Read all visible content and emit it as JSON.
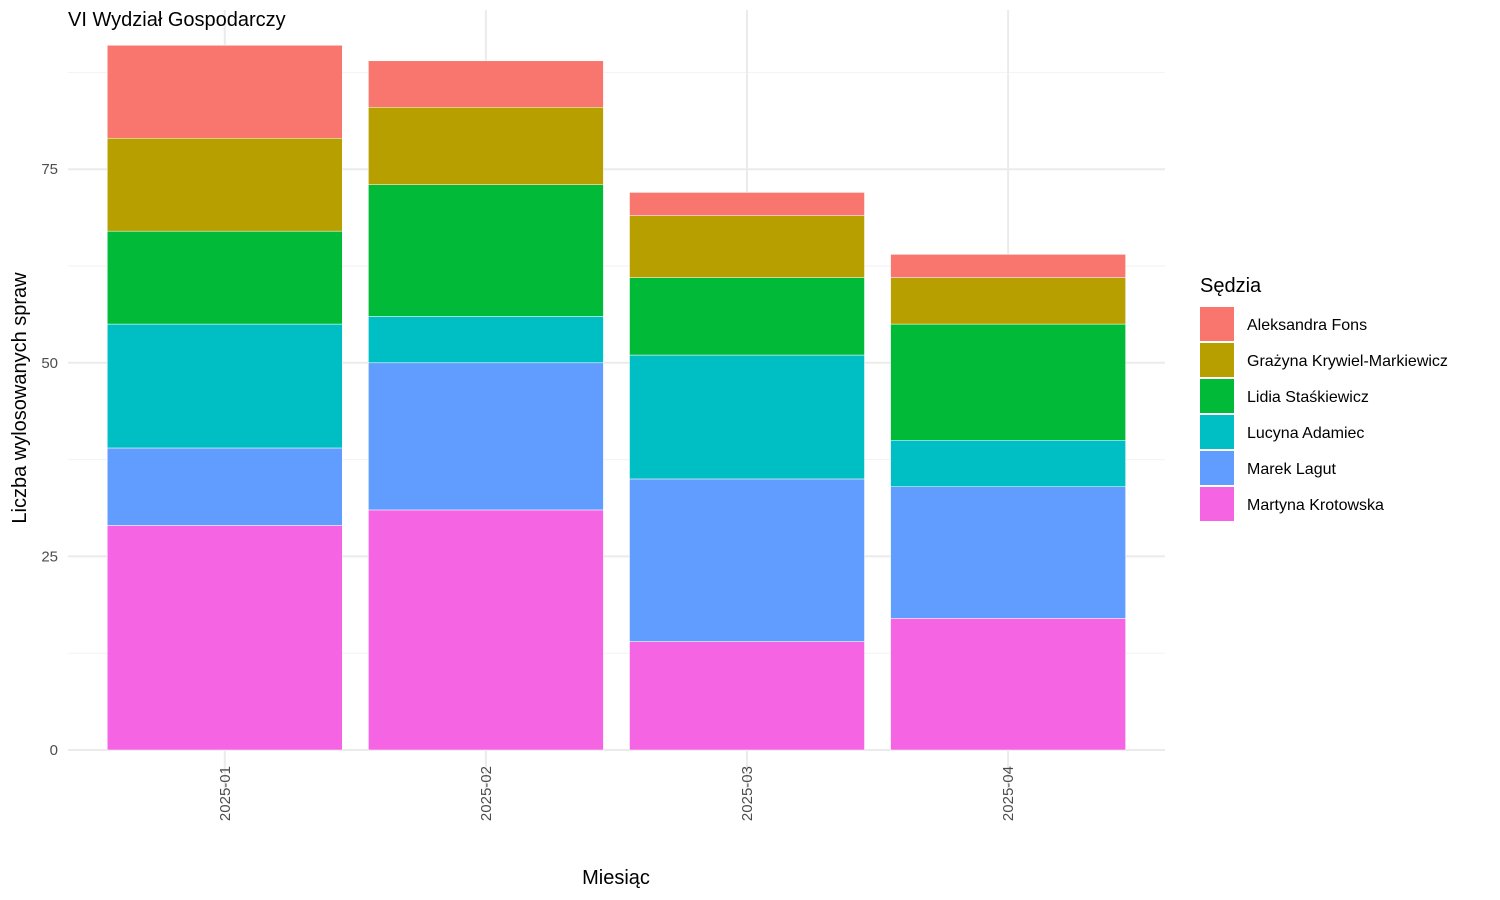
{
  "chart_data": {
    "type": "bar",
    "stacked": true,
    "title": "VI Wydział Gospodarczy",
    "xlabel": "Miesiąc",
    "ylabel": "Liczba wylosowanych spraw",
    "categories": [
      "2025-01",
      "2025-02",
      "2025-03",
      "2025-04"
    ],
    "ylim": [
      0,
      95
    ],
    "yticks": [
      0,
      25,
      50,
      75
    ],
    "grid": true,
    "legend": {
      "title": "Sędzia",
      "position": "right"
    },
    "series": [
      {
        "name": "Martyna Krotowska",
        "color": "#F564E3",
        "values": [
          29,
          31,
          14,
          17
        ]
      },
      {
        "name": "Marek Lagut",
        "color": "#619CFF",
        "values": [
          10,
          19,
          21,
          17
        ]
      },
      {
        "name": "Lucyna Adamiec",
        "color": "#00BFC4",
        "values": [
          16,
          6,
          16,
          6
        ]
      },
      {
        "name": "Lidia Staśkiewicz",
        "color": "#00BA38",
        "values": [
          12,
          17,
          10,
          15
        ]
      },
      {
        "name": "Grażyna Krywiel-Markiewicz",
        "color": "#B79F00",
        "values": [
          12,
          10,
          8,
          6
        ]
      },
      {
        "name": "Aleksandra Fons",
        "color": "#F8766D",
        "values": [
          12,
          6,
          3,
          3
        ]
      }
    ]
  }
}
